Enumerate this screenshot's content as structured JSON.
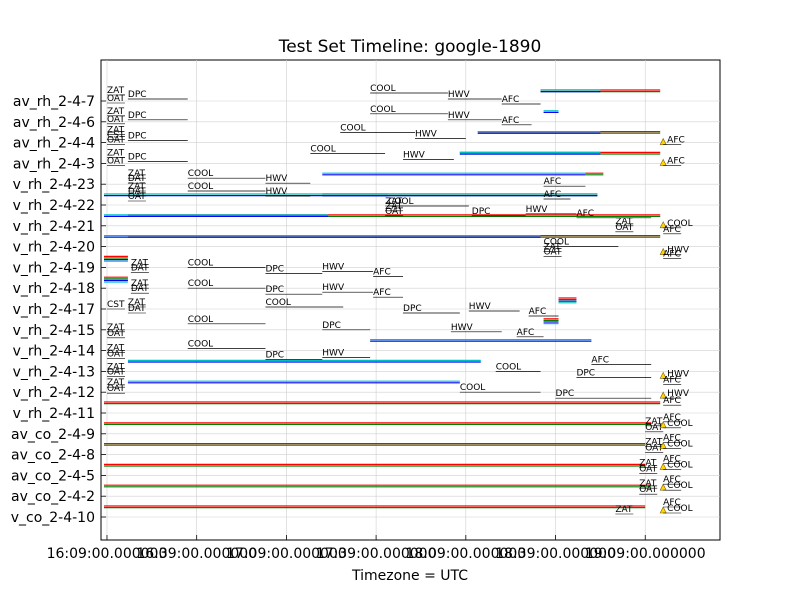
{
  "chart_data": {
    "type": "timeline",
    "title": "Test Set Timeline: google-1890",
    "xlabel": "Timezone = UTC",
    "x_ticks": [
      "16:09:00.000000",
      "16:39:00.000000",
      "17:09:00.000000",
      "17:39:00.000000",
      "18:09:00.000000",
      "18:39:00.000000",
      "19:09:00.000000",
      "19:09:00.000000"
    ],
    "x_range_min": [
      -2,
      205
    ],
    "grid": true,
    "rows": [
      "av_rh_2-4-7",
      "av_rh_2-4-6",
      "av_rh_2-4-4",
      "av_rh_2-4-3",
      "v_rh_2-4-23",
      "v_rh_2-4-22",
      "v_rh_2-4-21",
      "v_rh_2-4-20",
      "v_rh_2-4-19",
      "v_rh_2-4-18",
      "v_rh_2-4-17",
      "v_rh_2-4-15",
      "v_rh_2-4-14",
      "v_rh_2-4-13",
      "v_rh_2-4-12",
      "v_rh_2-4-11",
      "av_co_2-4-9",
      "av_co_2-4-8",
      "av_co_2-4-5",
      "av_co_2-4-2",
      "v_co_2-4-10"
    ],
    "series_colors": [
      "#ff0000",
      "#008000",
      "#0000ff",
      "#00bfbf",
      "#bfbf00"
    ],
    "bars": [
      {
        "row": 0,
        "start": 145,
        "end": 185,
        "colors": [
          "#ff0000",
          "#008000"
        ]
      },
      {
        "row": 0,
        "start": 145,
        "end": 165,
        "colors": [
          "#00bfbf",
          "#0000ff"
        ]
      },
      {
        "row": 1,
        "start": 146,
        "end": 151,
        "colors": [
          "#00bfbf",
          "#0000ff"
        ]
      },
      {
        "row": 2,
        "start": 124,
        "end": 185,
        "colors": [
          "#ff0000",
          "#008000"
        ]
      },
      {
        "row": 2,
        "start": 124,
        "end": 165,
        "colors": [
          "#00bfbf",
          "#0000ff"
        ]
      },
      {
        "row": 3,
        "start": 118,
        "end": 185,
        "colors": [
          "#ff0000",
          "#008000"
        ]
      },
      {
        "row": 3,
        "start": 118,
        "end": 165,
        "colors": [
          "#00bfbf",
          "#0000ff"
        ]
      },
      {
        "row": 4,
        "start": 160,
        "end": 166,
        "colors": [
          "#ff0000",
          "#008000"
        ]
      },
      {
        "row": 4,
        "start": 72,
        "end": 160,
        "colors": [
          "#00bfbf",
          "#0000ff"
        ]
      },
      {
        "row": 5,
        "start": 72,
        "end": 164,
        "colors": [
          "#ff0000",
          "#008000"
        ]
      },
      {
        "row": 5,
        "start": 72,
        "end": 164,
        "colors": [
          "#00bfbf",
          "#0000ff"
        ]
      },
      {
        "row": 5,
        "start": -1,
        "end": 94,
        "colors": [
          "#00bfbf",
          "#0000ff"
        ]
      },
      {
        "row": 6,
        "start": 7,
        "end": 185,
        "colors": [
          "#ff0000",
          "#008000"
        ]
      },
      {
        "row": 6,
        "start": -1,
        "end": 74,
        "colors": [
          "#00bfbf",
          "#0000ff"
        ]
      },
      {
        "row": 7,
        "start": 7,
        "end": 185,
        "colors": [
          "#ff0000",
          "#008000"
        ]
      },
      {
        "row": 7,
        "start": -1,
        "end": 145,
        "colors": [
          "#00bfbf",
          "#0000ff"
        ]
      },
      {
        "row": 8,
        "start": -1,
        "end": 7,
        "colors": [
          "#ff0000",
          "#008000",
          "#0000ff",
          "#00bfbf"
        ]
      },
      {
        "row": 9,
        "start": -1,
        "end": 7,
        "colors": [
          "#ff0000",
          "#008000",
          "#0000ff",
          "#00bfbf"
        ]
      },
      {
        "row": 10,
        "start": 151,
        "end": 157,
        "colors": [
          "#ff0000",
          "#008000",
          "#0000ff",
          "#00bfbf"
        ]
      },
      {
        "row": 11,
        "start": 146,
        "end": 151,
        "colors": [
          "#ff0000",
          "#008000",
          "#0000ff",
          "#00bfbf"
        ]
      },
      {
        "row": 12,
        "start": 88,
        "end": 162,
        "colors": [
          "#00bfbf",
          "#0000ff"
        ]
      },
      {
        "row": 13,
        "start": 7,
        "end": 125,
        "colors": [
          "#00bfbf",
          "#0000ff"
        ]
      },
      {
        "row": 14,
        "start": 7,
        "end": 118,
        "colors": [
          "#00bfbf",
          "#0000ff"
        ]
      },
      {
        "row": 15,
        "start": -1,
        "end": 185,
        "colors": [
          "#ff0000",
          "#008000"
        ]
      },
      {
        "row": 16,
        "start": -1,
        "end": 182,
        "colors": [
          "#ff0000",
          "#008000"
        ]
      },
      {
        "row": 17,
        "start": -1,
        "end": 180,
        "colors": [
          "#ff0000",
          "#008000"
        ]
      },
      {
        "row": 18,
        "start": -1,
        "end": 180,
        "colors": [
          "#ff0000",
          "#008000"
        ]
      },
      {
        "row": 19,
        "start": -1,
        "end": 182,
        "colors": [
          "#ff0000",
          "#008000"
        ]
      },
      {
        "row": 20,
        "start": -1,
        "end": 180,
        "colors": [
          "#ff0000",
          "#008000"
        ]
      }
    ],
    "annotations": [
      {
        "row": 0,
        "x": 0,
        "text": "ZAT",
        "dy": -8
      },
      {
        "row": 0,
        "x": 0,
        "text": "OAT",
        "dy": 0
      },
      {
        "row": 0,
        "x": 7,
        "text": "DPC",
        "dy": -4,
        "line_to": 27
      },
      {
        "row": 0,
        "x": 88,
        "text": "COOL",
        "dy": -10,
        "line_to": 114
      },
      {
        "row": 0,
        "x": 114,
        "text": "HWV",
        "dy": -4,
        "line_to": 132
      },
      {
        "row": 0,
        "x": 132,
        "text": "AFC",
        "dy": 1,
        "line_to": 145
      },
      {
        "row": 1,
        "x": 0,
        "text": "ZAT",
        "dy": -8
      },
      {
        "row": 1,
        "x": 0,
        "text": "OAT",
        "dy": 0
      },
      {
        "row": 1,
        "x": 7,
        "text": "DPC",
        "dy": -4,
        "line_to": 27
      },
      {
        "row": 1,
        "x": 88,
        "text": "COOL",
        "dy": -10,
        "line_to": 114
      },
      {
        "row": 1,
        "x": 114,
        "text": "HWV",
        "dy": -4,
        "line_to": 132
      },
      {
        "row": 1,
        "x": 132,
        "text": "AFC",
        "dy": 1,
        "line_to": 142
      },
      {
        "row": 2,
        "x": 0,
        "text": "ZAT",
        "dy": -10
      },
      {
        "row": 2,
        "x": 0,
        "text": "CST",
        "dy": -5
      },
      {
        "row": 2,
        "x": 0,
        "text": "OAT",
        "dy": 0
      },
      {
        "row": 2,
        "x": 7,
        "text": "DPC",
        "dy": -4,
        "line_to": 27
      },
      {
        "row": 2,
        "x": 78,
        "text": "COOL",
        "dy": -12,
        "line_to": 103
      },
      {
        "row": 2,
        "x": 103,
        "text": "HWV",
        "dy": -6,
        "line_to": 120
      },
      {
        "row": 2,
        "x": 186,
        "text": "AFC",
        "dy": 0,
        "marker": true
      },
      {
        "row": 3,
        "x": 0,
        "text": "ZAT",
        "dy": -8
      },
      {
        "row": 3,
        "x": 0,
        "text": "OAT",
        "dy": 0
      },
      {
        "row": 3,
        "x": 7,
        "text": "DPC",
        "dy": -4,
        "line_to": 27
      },
      {
        "row": 3,
        "x": 68,
        "text": "COOL",
        "dy": -12,
        "line_to": 93
      },
      {
        "row": 3,
        "x": 99,
        "text": "HWV",
        "dy": -6,
        "line_to": 116
      },
      {
        "row": 3,
        "x": 186,
        "text": "AFC",
        "dy": 0,
        "marker": true
      },
      {
        "row": 4,
        "x": 7,
        "text": "ZAT",
        "dy": -8
      },
      {
        "row": 4,
        "x": 7,
        "text": "DAT",
        "dy": -3
      },
      {
        "row": 4,
        "x": 27,
        "text": "COOL",
        "dy": -8,
        "line_to": 53
      },
      {
        "row": 4,
        "x": 53,
        "text": "HWV",
        "dy": -3,
        "line_to": 68
      },
      {
        "row": 4,
        "x": 146,
        "text": "AFC",
        "dy": 0,
        "line_to": 160
      },
      {
        "row": 5,
        "x": 7,
        "text": "ZAT",
        "dy": -16
      },
      {
        "row": 5,
        "x": 7,
        "text": "DAT",
        "dy": -11
      },
      {
        "row": 5,
        "x": 7,
        "text": "OAT",
        "dy": -6
      },
      {
        "row": 5,
        "x": 27,
        "text": "COOL",
        "dy": -16,
        "line_to": 53
      },
      {
        "row": 5,
        "x": 53,
        "text": "HWV",
        "dy": -11,
        "line_to": 68
      },
      {
        "row": 5,
        "x": 146,
        "text": "AFC",
        "dy": -8,
        "line_to": 155
      },
      {
        "row": 5,
        "x": 94,
        "text": "COOL",
        "dy": -1,
        "line_to": 121
      },
      {
        "row": 5,
        "x": 93,
        "text": "ZAT",
        "dy": -1
      },
      {
        "row": 6,
        "x": 93,
        "text": "OAT",
        "dy": -12
      },
      {
        "row": 6,
        "x": 93,
        "text": "ZAT",
        "dy": -17
      },
      {
        "row": 6,
        "x": 122,
        "text": "DPC",
        "dy": -12,
        "line_to": 140
      },
      {
        "row": 6,
        "x": 140,
        "text": "HWV",
        "dy": -14,
        "line_to": 157
      },
      {
        "row": 6,
        "x": 157,
        "text": "AFC",
        "dy": -10,
        "line_to": 182
      },
      {
        "row": 6,
        "x": 170,
        "text": "ZAT",
        "dy": -2
      },
      {
        "row": 6,
        "x": 170,
        "text": "OAT",
        "dy": 4
      },
      {
        "row": 6,
        "x": 186,
        "text": "COOL",
        "dy": 0,
        "marker": true
      },
      {
        "row": 6,
        "x": 186,
        "text": "AFC",
        "dy": 6
      },
      {
        "row": 7,
        "x": 146,
        "text": "COOL",
        "dy": -2,
        "line_to": 171
      },
      {
        "row": 7,
        "x": 146,
        "text": "ZAT",
        "dy": 3
      },
      {
        "row": 7,
        "x": 146,
        "text": "OAT",
        "dy": 8
      },
      {
        "row": 7,
        "x": 186,
        "text": "HWV",
        "dy": 6,
        "marker": true
      },
      {
        "row": 7,
        "x": 186,
        "text": "AFC",
        "dy": 10
      },
      {
        "row": 8,
        "x": 8,
        "text": "ZAT",
        "dy": -2
      },
      {
        "row": 8,
        "x": 8,
        "text": "DAT",
        "dy": 3
      },
      {
        "row": 8,
        "x": 27,
        "text": "COOL",
        "dy": -2,
        "line_to": 53
      },
      {
        "row": 8,
        "x": 53,
        "text": "DPC",
        "dy": 4,
        "line_to": 72
      },
      {
        "row": 8,
        "x": 72,
        "text": "HWV",
        "dy": 2,
        "line_to": 89
      },
      {
        "row": 8,
        "x": 89,
        "text": "AFC",
        "dy": 7,
        "line_to": 99
      },
      {
        "row": 9,
        "x": 8,
        "text": "ZAT",
        "dy": -2
      },
      {
        "row": 9,
        "x": 8,
        "text": "DAT",
        "dy": 3
      },
      {
        "row": 9,
        "x": 27,
        "text": "COOL",
        "dy": -2,
        "line_to": 53
      },
      {
        "row": 9,
        "x": 53,
        "text": "DPC",
        "dy": 4,
        "line_to": 72
      },
      {
        "row": 9,
        "x": 72,
        "text": "HWV",
        "dy": 2,
        "line_to": 89
      },
      {
        "row": 9,
        "x": 89,
        "text": "AFC",
        "dy": 7,
        "line_to": 99
      },
      {
        "row": 10,
        "x": 0,
        "text": "CST",
        "dy": -2
      },
      {
        "row": 10,
        "x": 7,
        "text": "ZAT",
        "dy": -4
      },
      {
        "row": 10,
        "x": 7,
        "text": "DAT",
        "dy": 2
      },
      {
        "row": 10,
        "x": 53,
        "text": "COOL",
        "dy": -4,
        "line_to": 79
      },
      {
        "row": 10,
        "x": 99,
        "text": "DPC",
        "dy": 2,
        "line_to": 118
      },
      {
        "row": 10,
        "x": 121,
        "text": "HWV",
        "dy": 0,
        "line_to": 138
      },
      {
        "row": 10,
        "x": 141,
        "text": "AFC",
        "dy": 5,
        "line_to": 151
      },
      {
        "row": 11,
        "x": 0,
        "text": "ZAT",
        "dy": 0
      },
      {
        "row": 11,
        "x": 0,
        "text": "OAT",
        "dy": 6
      },
      {
        "row": 11,
        "x": 27,
        "text": "COOL",
        "dy": -8,
        "line_to": 53
      },
      {
        "row": 11,
        "x": 72,
        "text": "DPC",
        "dy": -2,
        "line_to": 88
      },
      {
        "row": 11,
        "x": 115,
        "text": "HWV",
        "dy": 0,
        "line_to": 132
      },
      {
        "row": 11,
        "x": 137,
        "text": "AFC",
        "dy": 5,
        "line_to": 146
      },
      {
        "row": 12,
        "x": 0,
        "text": "ZAT",
        "dy": 0
      },
      {
        "row": 12,
        "x": 0,
        "text": "OAT",
        "dy": 6
      },
      {
        "row": 12,
        "x": 27,
        "text": "COOL",
        "dy": -4,
        "line_to": 53
      },
      {
        "row": 12,
        "x": 53,
        "text": "DPC",
        "dy": 7,
        "line_to": 72
      },
      {
        "row": 12,
        "x": 72,
        "text": "HWV",
        "dy": 5,
        "line_to": 88
      },
      {
        "row": 12,
        "x": 162,
        "text": "AFC",
        "dy": 12,
        "line_to": 182
      },
      {
        "row": 13,
        "x": 0,
        "text": "ZAT",
        "dy": -2
      },
      {
        "row": 13,
        "x": 0,
        "text": "OAT",
        "dy": 3
      },
      {
        "row": 13,
        "x": 130,
        "text": "COOL",
        "dy": -2,
        "line_to": 145
      },
      {
        "row": 13,
        "x": 157,
        "text": "DPC",
        "dy": 4,
        "line_to": 182
      },
      {
        "row": 13,
        "x": 186,
        "text": "HWV",
        "dy": 5,
        "marker": true
      },
      {
        "row": 13,
        "x": 186,
        "text": "AFC",
        "dy": 11
      },
      {
        "row": 14,
        "x": 0,
        "text": "ZAT",
        "dy": -7
      },
      {
        "row": 14,
        "x": 0,
        "text": "OAT",
        "dy": -1
      },
      {
        "row": 14,
        "x": 118,
        "text": "COOL",
        "dy": -2,
        "line_to": 145
      },
      {
        "row": 14,
        "x": 150,
        "text": "DPC",
        "dy": 4,
        "line_to": 182
      },
      {
        "row": 14,
        "x": 186,
        "text": "HWV",
        "dy": 4,
        "marker": true
      },
      {
        "row": 14,
        "x": 186,
        "text": "AFC",
        "dy": 11
      },
      {
        "row": 16,
        "x": 180,
        "text": "ZAT",
        "dy": -10
      },
      {
        "row": 16,
        "x": 180,
        "text": "OAT",
        "dy": -4
      },
      {
        "row": 16,
        "x": 186,
        "text": "AFC",
        "dy": -14
      },
      {
        "row": 16,
        "x": 186,
        "text": "COOL",
        "dy": -8,
        "marker": true
      },
      {
        "row": 17,
        "x": 180,
        "text": "ZAT",
        "dy": -10
      },
      {
        "row": 17,
        "x": 180,
        "text": "OAT",
        "dy": -4
      },
      {
        "row": 17,
        "x": 186,
        "text": "AFC",
        "dy": -14
      },
      {
        "row": 17,
        "x": 186,
        "text": "COOL",
        "dy": -8,
        "marker": true
      },
      {
        "row": 18,
        "x": 178,
        "text": "ZAT",
        "dy": -10
      },
      {
        "row": 18,
        "x": 178,
        "text": "OAT",
        "dy": -4
      },
      {
        "row": 18,
        "x": 186,
        "text": "AFC",
        "dy": -14
      },
      {
        "row": 18,
        "x": 186,
        "text": "COOL",
        "dy": -8,
        "marker": true
      },
      {
        "row": 19,
        "x": 178,
        "text": "ZAT",
        "dy": -10
      },
      {
        "row": 19,
        "x": 178,
        "text": "OAT",
        "dy": -4
      },
      {
        "row": 19,
        "x": 186,
        "text": "AFC",
        "dy": -14
      },
      {
        "row": 19,
        "x": 186,
        "text": "COOL",
        "dy": -8,
        "marker": true
      },
      {
        "row": 20,
        "x": 170,
        "text": "ZAT",
        "dy": -5
      },
      {
        "row": 20,
        "x": 186,
        "text": "AFC",
        "dy": -12
      },
      {
        "row": 20,
        "x": 186,
        "text": "COOL",
        "dy": -6,
        "marker": true
      }
    ]
  }
}
